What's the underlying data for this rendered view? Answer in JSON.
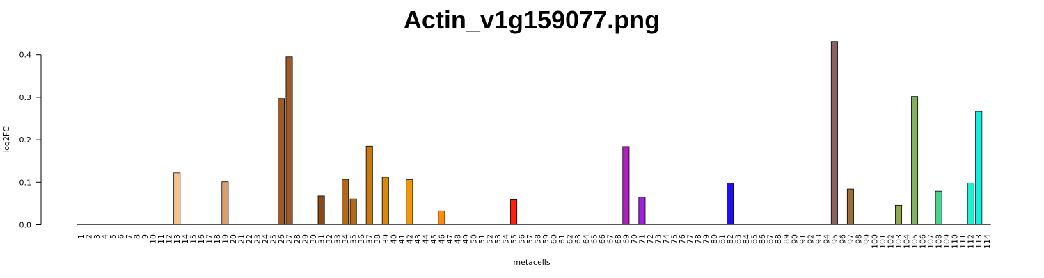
{
  "chart_data": {
    "type": "bar",
    "title": "Actin_v1g159077.png",
    "xlabel": "metacells",
    "ylabel": "log2FC",
    "ylim": [
      0,
      0.43
    ],
    "yticks": [
      "0.0",
      "0.1",
      "0.2",
      "0.3",
      "0.4"
    ],
    "grid": false,
    "categories": [
      "1",
      "2",
      "3",
      "4",
      "5",
      "6",
      "7",
      "8",
      "9",
      "10",
      "11",
      "12",
      "13",
      "14",
      "15",
      "16",
      "17",
      "18",
      "19",
      "20",
      "21",
      "22",
      "23",
      "24",
      "25",
      "26",
      "27",
      "28",
      "29",
      "30",
      "31",
      "32",
      "33",
      "34",
      "35",
      "36",
      "37",
      "38",
      "39",
      "40",
      "41",
      "42",
      "43",
      "44",
      "45",
      "46",
      "47",
      "48",
      "49",
      "50",
      "51",
      "52",
      "53",
      "54",
      "55",
      "56",
      "57",
      "58",
      "59",
      "60",
      "61",
      "62",
      "63",
      "64",
      "65",
      "66",
      "67",
      "68",
      "69",
      "70",
      "71",
      "72",
      "73",
      "74",
      "75",
      "76",
      "77",
      "78",
      "79",
      "80",
      "81",
      "82",
      "83",
      "84",
      "85",
      "86",
      "87",
      "88",
      "89",
      "90",
      "91",
      "92",
      "93",
      "94",
      "95",
      "96",
      "97",
      "98",
      "99",
      "100",
      "101",
      "102",
      "103",
      "104",
      "105",
      "106",
      "107",
      "108",
      "109",
      "110",
      "111",
      "112",
      "113",
      "114"
    ],
    "nonzero": {
      "13": {
        "value": 0.122,
        "color": "#f2c590"
      },
      "19": {
        "value": 0.101,
        "color": "#d8a070"
      },
      "26": {
        "value": 0.297,
        "color": "#9a5a2a"
      },
      "27": {
        "value": 0.395,
        "color": "#9a5a2a"
      },
      "31": {
        "value": 0.068,
        "color": "#8a4a18"
      },
      "34": {
        "value": 0.107,
        "color": "#b06a20"
      },
      "35": {
        "value": 0.061,
        "color": "#b06a18"
      },
      "37": {
        "value": 0.185,
        "color": "#c87a10"
      },
      "39": {
        "value": 0.112,
        "color": "#d88a10"
      },
      "42": {
        "value": 0.106,
        "color": "#ee9810"
      },
      "46": {
        "value": 0.033,
        "color": "#ff8a10"
      },
      "55": {
        "value": 0.059,
        "color": "#ff2010"
      },
      "69": {
        "value": 0.184,
        "color": "#b020c0"
      },
      "71": {
        "value": 0.065,
        "color": "#a020e0"
      },
      "82": {
        "value": 0.098,
        "color": "#2010f0"
      },
      "95": {
        "value": 0.431,
        "color": "#8a6060"
      },
      "97": {
        "value": 0.084,
        "color": "#9a7038"
      },
      "103": {
        "value": 0.046,
        "color": "#90a850"
      },
      "105": {
        "value": 0.302,
        "color": "#80b060"
      },
      "108": {
        "value": 0.079,
        "color": "#50d090"
      },
      "112": {
        "value": 0.098,
        "color": "#20f0d0"
      },
      "113": {
        "value": 0.267,
        "color": "#10f0e0"
      }
    },
    "zero_color": "#aaaaaa"
  }
}
